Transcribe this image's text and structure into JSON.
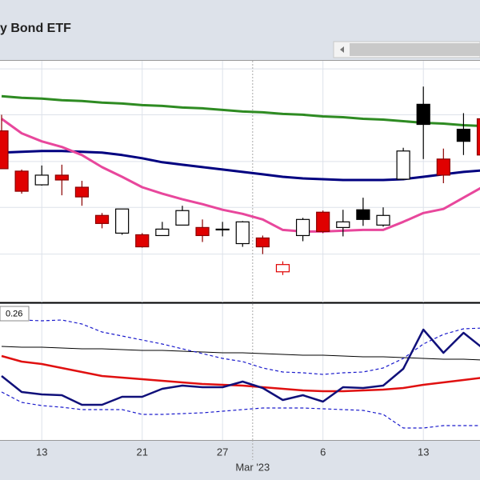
{
  "chart_data": {
    "type": "candlestick",
    "title": "y Bond ETF",
    "xlim": [
      -0.08,
      23.82
    ],
    "xticks": [
      {
        "value": 2,
        "label": "13"
      },
      {
        "value": 7,
        "label": "21"
      },
      {
        "value": 11,
        "label": "27"
      },
      {
        "value": 16,
        "label": "6"
      },
      {
        "value": 21,
        "label": "13"
      }
    ],
    "month_ticks": [
      {
        "value": 12.5,
        "label": "Mar '23"
      }
    ],
    "styles": {
      "down": {
        "fill": "#e00000",
        "stroke": "#8a0000"
      },
      "up": {
        "fill": "#ffffff",
        "stroke": "#000000"
      },
      "black": {
        "fill": "#000000",
        "stroke": "#000000"
      },
      "redup": {
        "fill": "#ffffff",
        "stroke": "#e00000"
      }
    },
    "price": {
      "ylim": [
        0,
        300
      ],
      "ygrid": [
        60,
        118,
        175,
        233,
        290
      ],
      "open": [
        213,
        163,
        146,
        158,
        143,
        108,
        86,
        84,
        83,
        96,
        93,
        91,
        73,
        80,
        38,
        83,
        112,
        93,
        115,
        96,
        153,
        246,
        178,
        215,
        228
      ],
      "high": [
        233,
        165,
        170,
        171,
        151,
        111,
        116,
        86,
        100,
        120,
        103,
        100,
        101,
        83,
        51,
        105,
        114,
        115,
        130,
        118,
        192,
        268,
        191,
        235,
        233
      ],
      "low": [
        166,
        135,
        145,
        133,
        120,
        92,
        84,
        68,
        83,
        96,
        75,
        82,
        69,
        60,
        34,
        76,
        86,
        82,
        95,
        94,
        152,
        178,
        148,
        183,
        178
      ],
      "close": [
        166,
        138,
        158,
        152,
        131,
        98,
        116,
        69,
        91,
        114,
        83,
        91,
        100,
        69,
        47,
        103,
        88,
        100,
        103,
        108,
        188,
        221,
        158,
        200,
        183
      ],
      "style": [
        "down",
        "down",
        "up",
        "down",
        "down",
        "down",
        "up",
        "down",
        "up",
        "up",
        "down",
        "up",
        "up",
        "down",
        "redup",
        "up",
        "down",
        "up",
        "black",
        "up",
        "up",
        "black",
        "down",
        "black",
        "down"
      ],
      "series": [
        {
          "color": "#2e8b22",
          "width": 3,
          "values": [
            256,
            254,
            253,
            251,
            250,
            248,
            247,
            245,
            244,
            242,
            241,
            239,
            237,
            236,
            234,
            233,
            231,
            230,
            228,
            227,
            225,
            223,
            222,
            220,
            219
          ]
        },
        {
          "color": "#000080",
          "width": 3,
          "values": [
            186,
            187,
            188,
            188,
            187,
            186,
            183,
            179,
            174,
            171,
            168,
            165,
            162,
            159,
            156,
            154,
            153,
            152,
            152,
            152,
            153,
            156,
            159,
            162,
            164
          ]
        },
        {
          "color": "#e8479c",
          "width": 3,
          "values": [
            228,
            210,
            200,
            193,
            183,
            168,
            156,
            143,
            135,
            128,
            122,
            115,
            110,
            103,
            90,
            88,
            88,
            89,
            90,
            90,
            100,
            111,
            116,
            130,
            144
          ]
        }
      ]
    },
    "indicator": {
      "label": "0.26",
      "ylim": [
        25,
        195
      ],
      "series": [
        {
          "color": "#000000",
          "width": 1,
          "values": [
            142,
            141,
            141,
            140,
            139,
            139,
            138,
            137,
            137,
            136,
            135,
            134,
            134,
            133,
            132,
            131,
            131,
            130,
            129,
            129,
            128,
            127,
            126,
            126,
            125
          ]
        },
        {
          "color": "#e01010",
          "width": 2.5,
          "values": [
            130,
            123,
            120,
            115,
            110,
            105,
            103,
            101,
            99,
            97,
            95,
            94,
            93,
            91,
            89,
            87,
            86,
            86,
            87,
            88,
            90,
            94,
            97,
            100,
            103
          ]
        },
        {
          "color": "#1a1acc",
          "width": 1.2,
          "dash": true,
          "values": [
            175,
            175,
            174,
            175,
            170,
            160,
            155,
            150,
            145,
            139,
            133,
            127,
            123,
            115,
            110,
            109,
            107,
            109,
            110,
            115,
            127,
            145,
            157,
            164,
            165
          ]
        },
        {
          "color": "#1a1acc",
          "width": 1.2,
          "dash": true,
          "values": [
            85,
            72,
            68,
            66,
            63,
            63,
            63,
            57,
            57,
            58,
            59,
            61,
            63,
            65,
            65,
            65,
            64,
            63,
            62,
            57,
            40,
            40,
            43,
            43,
            43
          ]
        },
        {
          "color": "#10107a",
          "width": 2.5,
          "values": [
            105,
            85,
            82,
            81,
            69,
            69,
            79,
            79,
            89,
            93,
            91,
            91,
            98,
            90,
            75,
            81,
            73,
            91,
            90,
            93,
            114,
            163,
            134,
            159,
            139
          ]
        }
      ]
    }
  }
}
